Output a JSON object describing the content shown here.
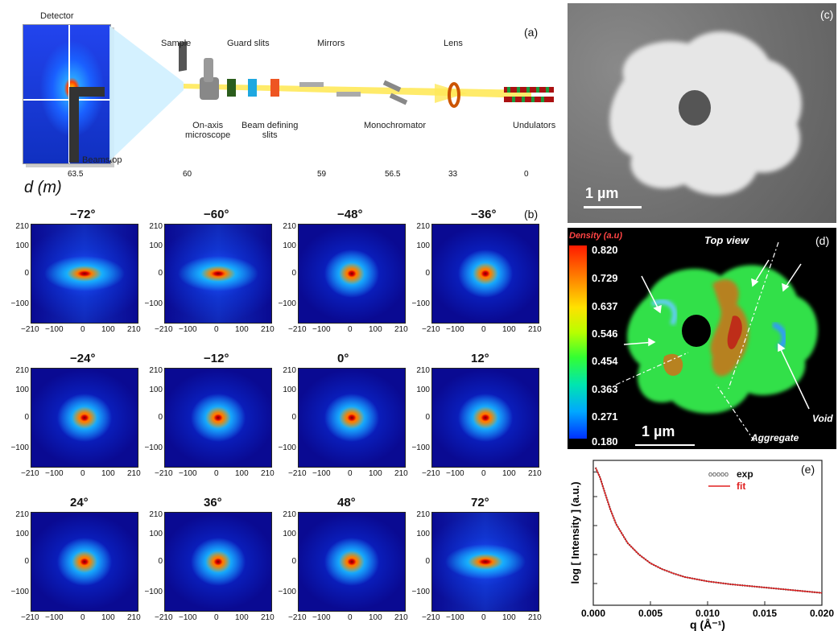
{
  "panel_a": {
    "letter": "(a)",
    "labels": {
      "detector": "Detector",
      "sample": "Sample",
      "guard_slits": "Guard slits",
      "mirrors": "Mirrors",
      "lens": "Lens",
      "beamstop": "Beamstop",
      "on_axis_microscope": "On-axis\nmicroscope",
      "beam_defining_slits": "Beam defining\nslits",
      "monochromator": "Monochromator",
      "undulators": "Undulators"
    },
    "distance_axis": {
      "label": "d (m)",
      "ticks": [
        "63.5",
        "60",
        "59",
        "56.5",
        "33",
        "0"
      ]
    }
  },
  "panel_b": {
    "letter": "(b)",
    "angles": [
      "−72°",
      "−60°",
      "−48°",
      "−36°",
      "−24°",
      "−12°",
      "0°",
      "12°",
      "24°",
      "36°",
      "48°",
      "72°"
    ],
    "y_ticks": [
      "210",
      "100",
      "0",
      "−100"
    ],
    "x_ticks": [
      "−210",
      "−100",
      "0",
      "100",
      "210"
    ]
  },
  "panel_c": {
    "letter": "(c)",
    "scale_bar": "1 µm"
  },
  "panel_d": {
    "letter": "(d)",
    "colorbar_title": "Density (a.u)",
    "colorbar_ticks": [
      "0.820",
      "0.729",
      "0.637",
      "0.546",
      "0.454",
      "0.363",
      "0.271",
      "0.180"
    ],
    "top_view": "Top view",
    "void": "Void",
    "aggregate": "Aggregate",
    "scale_bar": "1 µm"
  },
  "panel_e": {
    "letter": "(e)",
    "chart_data": {
      "type": "line",
      "xlabel": "q (Å⁻¹)",
      "ylabel": "log [ Intensity ] (a.u.)",
      "xlim": [
        0.0,
        0.02
      ],
      "x_ticks": [
        "0.000",
        "0.005",
        "0.010",
        "0.015",
        "0.020"
      ],
      "legend": [
        "exp",
        "fit"
      ],
      "legend_position": "top-right",
      "series": [
        {
          "name": "exp",
          "x": [
            0.0002,
            0.0006,
            0.001,
            0.0015,
            0.002,
            0.003,
            0.004,
            0.005,
            0.006,
            0.007,
            0.008,
            0.01,
            0.012,
            0.014,
            0.016,
            0.018,
            0.02
          ],
          "y": [
            0.95,
            0.88,
            0.78,
            0.66,
            0.56,
            0.43,
            0.35,
            0.29,
            0.25,
            0.22,
            0.195,
            0.165,
            0.145,
            0.13,
            0.115,
            0.1,
            0.085
          ]
        },
        {
          "name": "fit",
          "x": [
            0.0002,
            0.0006,
            0.001,
            0.0015,
            0.002,
            0.003,
            0.004,
            0.005,
            0.006,
            0.007,
            0.008,
            0.01,
            0.012,
            0.014,
            0.016,
            0.018,
            0.02
          ],
          "y": [
            0.95,
            0.88,
            0.78,
            0.66,
            0.56,
            0.43,
            0.35,
            0.29,
            0.25,
            0.22,
            0.195,
            0.165,
            0.145,
            0.13,
            0.115,
            0.1,
            0.085
          ]
        }
      ],
      "colors": {
        "exp": "#333333",
        "fit": "#e02020"
      }
    }
  }
}
